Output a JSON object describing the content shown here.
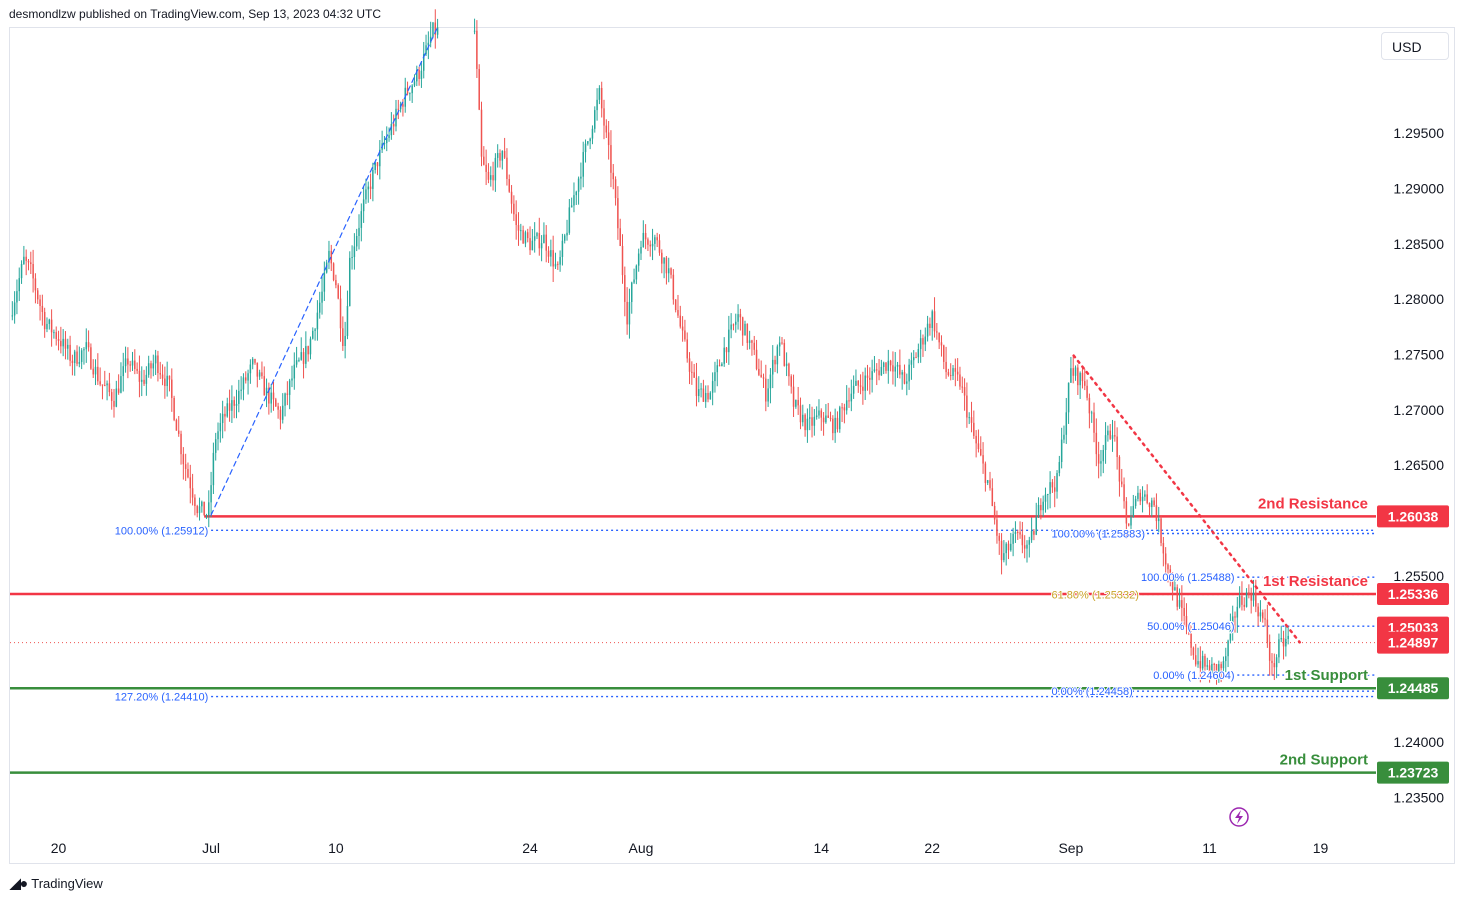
{
  "header": {
    "text": "desmondlzw published on TradingView.com, Sep 13, 2023 04:32 UTC"
  },
  "currency": "USD",
  "footer": {
    "brand": "TradingView"
  },
  "colors": {
    "up": "#26a69a",
    "down": "#ef5350",
    "resistance": "#f23645",
    "support": "#388e3c",
    "fib": "#2962ff",
    "fib_gold": "#c9a227",
    "trend": "#f23645"
  },
  "chart_data": {
    "type": "candlestick",
    "symbol_quote": "USD",
    "ylim": [
      1.2315,
      1.3045
    ],
    "y_ticks": [
      1.295,
      1.29,
      1.285,
      1.28,
      1.275,
      1.27,
      1.265,
      1.255,
      1.24,
      1.235
    ],
    "y_tick_labels": [
      "1.29500",
      "1.29000",
      "1.28500",
      "1.28000",
      "1.27500",
      "1.27000",
      "1.26500",
      "1.25500",
      "1.24000",
      "1.23500"
    ],
    "x_labels": [
      {
        "label": "20",
        "day": 0
      },
      {
        "label": "Jul",
        "day": 11
      },
      {
        "label": "10",
        "day": 20
      },
      {
        "label": "24",
        "day": 34
      },
      {
        "label": "Aug",
        "day": 42
      },
      {
        "label": "14",
        "day": 55
      },
      {
        "label": "22",
        "day": 63
      },
      {
        "label": "Sep",
        "day": 73
      },
      {
        "label": "11",
        "day": 83
      },
      {
        "label": "19",
        "day": 91
      }
    ],
    "x_domain": [
      -3.5,
      95.0
    ],
    "price_path": [
      [
        -3.5,
        1.2785
      ],
      [
        -2.5,
        1.2835
      ],
      [
        -2,
        1.2825
      ],
      [
        -1,
        1.278
      ],
      [
        0,
        1.2765
      ],
      [
        1,
        1.2745
      ],
      [
        2,
        1.2755
      ],
      [
        3,
        1.2725
      ],
      [
        4,
        1.271
      ],
      [
        5,
        1.2745
      ],
      [
        6,
        1.2725
      ],
      [
        7,
        1.2745
      ],
      [
        8,
        1.272
      ],
      [
        9,
        1.2655
      ],
      [
        10,
        1.2612
      ],
      [
        10.8,
        1.2605
      ],
      [
        11.3,
        1.2675
      ],
      [
        12,
        1.2695
      ],
      [
        13,
        1.2715
      ],
      [
        14,
        1.274
      ],
      [
        15,
        1.2715
      ],
      [
        16,
        1.2695
      ],
      [
        17,
        1.2735
      ],
      [
        18,
        1.2755
      ],
      [
        19,
        1.2805
      ],
      [
        19.5,
        1.284
      ],
      [
        20,
        1.2815
      ],
      [
        20.6,
        1.2755
      ],
      [
        21,
        1.2835
      ],
      [
        22,
        1.2885
      ],
      [
        23,
        1.2925
      ],
      [
        24,
        1.2955
      ],
      [
        25,
        1.2985
      ],
      [
        26,
        1.3005
      ],
      [
        27,
        1.3042
      ],
      [
        30,
        1.3042
      ],
      [
        30.5,
        1.2925
      ],
      [
        31,
        1.2905
      ],
      [
        32,
        1.2935
      ],
      [
        33,
        1.2865
      ],
      [
        34,
        1.285
      ],
      [
        35,
        1.2855
      ],
      [
        36,
        1.2825
      ],
      [
        37,
        1.2885
      ],
      [
        38,
        1.2935
      ],
      [
        39,
        1.2985
      ],
      [
        40,
        1.2905
      ],
      [
        41,
        1.2785
      ],
      [
        42,
        1.2855
      ],
      [
        43,
        1.2855
      ],
      [
        44,
        1.2825
      ],
      [
        45,
        1.2765
      ],
      [
        46,
        1.2715
      ],
      [
        47,
        1.2715
      ],
      [
        48,
        1.2755
      ],
      [
        49,
        1.2785
      ],
      [
        50,
        1.2755
      ],
      [
        51,
        1.2715
      ],
      [
        52,
        1.2765
      ],
      [
        53,
        1.2705
      ],
      [
        54,
        1.2685
      ],
      [
        55,
        1.2695
      ],
      [
        56,
        1.2685
      ],
      [
        57,
        1.2715
      ],
      [
        58,
        1.2725
      ],
      [
        59,
        1.2735
      ],
      [
        60,
        1.2745
      ],
      [
        61,
        1.2725
      ],
      [
        62,
        1.2755
      ],
      [
        63,
        1.2785
      ],
      [
        64,
        1.2735
      ],
      [
        65,
        1.2725
      ],
      [
        66,
        1.2675
      ],
      [
        67,
        1.2635
      ],
      [
        68,
        1.2565
      ],
      [
        69,
        1.2585
      ],
      [
        70,
        1.2575
      ],
      [
        71,
        1.2625
      ],
      [
        72,
        1.2635
      ],
      [
        73,
        1.2735
      ],
      [
        74,
        1.2725
      ],
      [
        75,
        1.2655
      ],
      [
        76,
        1.2685
      ],
      [
        77,
        1.2595
      ],
      [
        78,
        1.2625
      ],
      [
        79,
        1.2615
      ],
      [
        80,
        1.2555
      ],
      [
        81,
        1.2515
      ],
      [
        82,
        1.2475
      ],
      [
        83,
        1.2465
      ],
      [
        84,
        1.2468
      ],
      [
        85,
        1.2525
      ],
      [
        86,
        1.2535
      ],
      [
        87,
        1.2505
      ],
      [
        87.5,
        1.2465
      ],
      [
        88,
        1.2485
      ],
      [
        88.8,
        1.2495
      ]
    ],
    "horizontal_levels": [
      {
        "label": "2nd Resistance",
        "value": 1.26038,
        "value_label": "1.26038",
        "kind": "resistance",
        "x_from": 10.5
      },
      {
        "label": "1st Resistance",
        "value": 1.25336,
        "value_label": "1.25336",
        "kind": "resistance",
        "x_from": -3.5
      },
      {
        "label": "1st Support",
        "value": 1.24485,
        "value_label": "1.24485",
        "kind": "support",
        "x_from": -3.5
      },
      {
        "label": "2nd Support",
        "value": 1.23723,
        "value_label": "1.23723",
        "kind": "support",
        "x_from": -3.5
      }
    ],
    "price_tags": [
      {
        "value": 1.25033,
        "label": "1.25033"
      },
      {
        "value": 1.24897,
        "label": "1.24897"
      }
    ],
    "current_price": 1.24897,
    "fib_levels": [
      {
        "text": "100.00% (1.25912)",
        "value": 1.25912,
        "x_from": 11,
        "x_to": 96,
        "text_day": 10.8,
        "anchor": "end",
        "color": "fib"
      },
      {
        "text": "127.20% (1.24410)",
        "value": 1.2441,
        "x_from": 11,
        "x_to": 96,
        "text_day": 10.8,
        "anchor": "end",
        "color": "fib"
      },
      {
        "text": "100.00% (1.25883)",
        "value": 1.25883,
        "x_from": 72,
        "x_to": 96,
        "text_day": 71.6,
        "anchor": "start",
        "color": "fib"
      },
      {
        "text": "61.80% (1.25332)",
        "value": 1.25332,
        "x_from": 72,
        "x_to": 96,
        "text_day": 71.6,
        "anchor": "start",
        "color": "gold"
      },
      {
        "text": "0.00% (1.24458)",
        "value": 1.24458,
        "x_from": 72,
        "x_to": 96,
        "text_day": 71.6,
        "anchor": "start",
        "color": "fib"
      },
      {
        "text": "100.00% (1.25488)",
        "value": 1.25488,
        "x_from": 85,
        "x_to": 96,
        "text_day": 84.8,
        "anchor": "end",
        "color": "fib"
      },
      {
        "text": "50.00% (1.25046)",
        "value": 1.25046,
        "x_from": 85,
        "x_to": 96,
        "text_day": 84.8,
        "anchor": "end",
        "color": "fib"
      },
      {
        "text": "0.00% (1.24604)",
        "value": 1.24604,
        "x_from": 85,
        "x_to": 96,
        "text_day": 84.8,
        "anchor": "end",
        "color": "fib"
      }
    ],
    "trendlines": [
      {
        "from": [
          11.0,
          1.2605
        ],
        "to": [
          27.3,
          1.3045
        ],
        "style": "dashed",
        "color": "fib"
      },
      {
        "from": [
          73.2,
          1.2749
        ],
        "to": [
          89.5,
          1.249
        ],
        "style": "dotted",
        "color": "trend"
      }
    ]
  }
}
